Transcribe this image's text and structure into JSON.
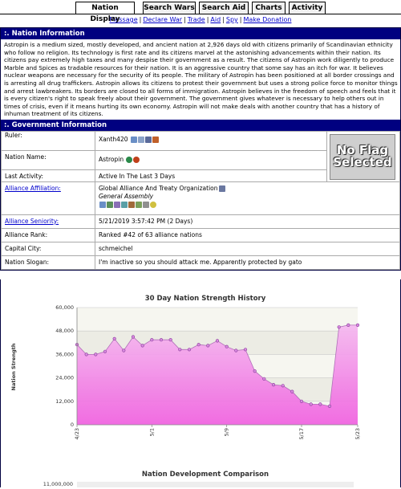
{
  "tabs": [
    "Nation Display",
    "Search Wars",
    "Search Aid",
    "Charts",
    "Activity"
  ],
  "links": [
    "Message",
    "Declare War",
    "Trade",
    "Aid",
    "Spy",
    "Make Donation"
  ],
  "nation_info": {
    "header": ":. Nation Information",
    "description": "Astropin is a medium sized, mostly developed, and ancient nation at 2,926 days old with citizens primarily of Scandinavian ethnicity who follow no religion. Its technology is first rate and its citizens marvel at the astonishing advancements within their nation. Its citizens pay extremely high taxes and many despise their government as a result. The citizens of Astropin work diligently to produce Marble and Spices as tradable resources for their nation. It is an aggressive country that some say has an itch for war. It believes nuclear weapons are necessary for the security of its people. The military of Astropin has been positioned at all border crossings and is arresting all drug traffickers. Astropin allows its citizens to protest their government but uses a strong police force to monitor things and arrest lawbreakers. Its borders are closed to all forms of immigration. Astropin believes in the freedom of speech and feels that it is every citizen's right to speak freely about their government. The government gives whatever is necessary to help others out in times of crisis, even if it means hurting its own economy. Astropin will not make deals with another country that has a history of inhuman treatment of its citizens."
  },
  "gov_info": {
    "header": ":. Government Information",
    "rows": [
      {
        "label": "Ruler:",
        "value": "Xanth420",
        "link": false
      },
      {
        "label": "Nation Name:",
        "value": "Astropin",
        "link": false
      },
      {
        "label": "Last Activity:",
        "value": "Active In The Last 3 Days",
        "link": false
      },
      {
        "label": "Alliance Affiliation:",
        "value": "Global Alliance And Treaty Organization",
        "value2": "General Assembly",
        "link": true
      },
      {
        "label": "Alliance Seniority:",
        "value": "5/21/2019 3:57:42 PM (2 Days)",
        "link": true
      },
      {
        "label": "Alliance Rank:",
        "value": "Ranked #42 of 63 alliance nations",
        "link": false
      },
      {
        "label": "Capital City:",
        "value": "schmeichel",
        "link": false
      },
      {
        "label": "Nation Slogan:",
        "value": "I'm inactive so you should attack me. Apparently protected by gato",
        "link": false
      }
    ],
    "flag_text": "No Flag Selected"
  },
  "chart_data": [
    {
      "type": "area",
      "title": "30 Day Nation Strength History",
      "ylabel": "Nation Strength",
      "ylim": [
        0,
        60000
      ],
      "yticks": [
        "0",
        "12,000",
        "24,000",
        "36,000",
        "48,000",
        "60,000"
      ],
      "xticks": [
        "4/23",
        "5/1",
        "5/9",
        "5/17",
        "5/23"
      ],
      "values": [
        41000,
        36000,
        36000,
        37500,
        44000,
        38000,
        45000,
        40500,
        43500,
        43500,
        43500,
        38500,
        38500,
        41000,
        40500,
        43000,
        40000,
        38000,
        38500,
        27500,
        23500,
        20500,
        20000,
        17000,
        12000,
        10500,
        10500,
        9500,
        50000,
        51000,
        51000
      ]
    },
    {
      "type": "bar",
      "title": "Nation Development Comparison",
      "yticks": [
        "11,000,000"
      ]
    }
  ]
}
